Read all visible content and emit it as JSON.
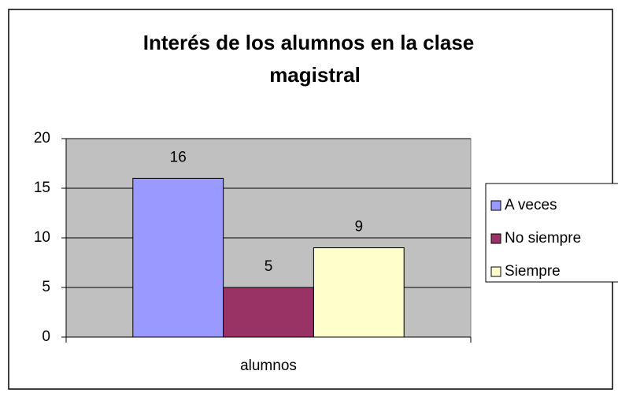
{
  "chart_data": {
    "type": "bar",
    "title": [
      "Interés de los alumnos en la clase",
      "magistral"
    ],
    "categories": [
      "alumnos"
    ],
    "series": [
      {
        "name": "A veces",
        "color": "#9999ff",
        "values": [
          16
        ]
      },
      {
        "name": "No siempre",
        "color": "#993366",
        "values": [
          5
        ]
      },
      {
        "name": "Siempre",
        "color": "#ffffcc",
        "values": [
          9
        ]
      }
    ],
    "ylim": [
      0,
      20
    ],
    "yticks": [
      0,
      5,
      10,
      15,
      20
    ],
    "grid": true,
    "legend": "right"
  }
}
